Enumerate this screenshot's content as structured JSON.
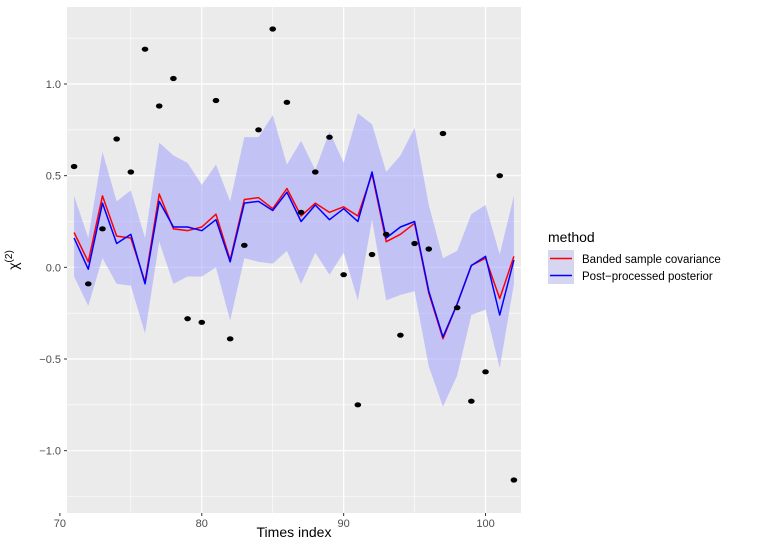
{
  "chart_data": {
    "type": "line",
    "title": "",
    "xlabel": "Times index",
    "ylabel": "χ",
    "ylabel_superscript": "(2)",
    "xlim": [
      70.5,
      102.5
    ],
    "ylim": [
      -1.34,
      1.42
    ],
    "x_ticks": [
      70,
      80,
      90,
      100
    ],
    "x_tick_labels": [
      "70",
      "80",
      "90",
      "100"
    ],
    "y_ticks": [
      -1.0,
      -0.5,
      0.0,
      0.5,
      1.0
    ],
    "y_tick_labels": [
      "−1.0",
      "−0.5",
      "0.0",
      "0.5",
      "1.0"
    ],
    "grid": true,
    "panel_background": "#ebebeb",
    "legend": {
      "title": "method",
      "placement": "right",
      "entries": [
        {
          "label": "Banded sample covariance",
          "color": "#ff0000"
        },
        {
          "label": "Post−processed posterior",
          "color": "#0000ff"
        }
      ]
    },
    "x": [
      71,
      72,
      73,
      74,
      75,
      76,
      77,
      78,
      79,
      80,
      81,
      82,
      83,
      84,
      85,
      86,
      87,
      88,
      89,
      90,
      91,
      92,
      93,
      94,
      95,
      96,
      97,
      98,
      99,
      100,
      101,
      102
    ],
    "series": [
      {
        "name": "Banded sample covariance",
        "color": "#ff0000",
        "values": [
          0.19,
          0.03,
          0.39,
          0.17,
          0.16,
          -0.08,
          0.4,
          0.21,
          0.2,
          0.22,
          0.29,
          0.04,
          0.37,
          0.38,
          0.32,
          0.43,
          0.28,
          0.35,
          0.3,
          0.33,
          0.28,
          0.51,
          0.14,
          0.18,
          0.24,
          -0.14,
          -0.39,
          -0.2,
          0.01,
          0.05,
          -0.17,
          0.06
        ]
      },
      {
        "name": "Post−processed posterior",
        "color": "#0000ff",
        "values": [
          0.16,
          -0.01,
          0.35,
          0.13,
          0.18,
          -0.09,
          0.36,
          0.22,
          0.22,
          0.2,
          0.26,
          0.03,
          0.35,
          0.36,
          0.31,
          0.41,
          0.25,
          0.34,
          0.26,
          0.32,
          0.25,
          0.52,
          0.16,
          0.22,
          0.25,
          -0.13,
          -0.38,
          -0.2,
          0.01,
          0.06,
          -0.26,
          0.04
        ]
      }
    ],
    "band": {
      "color": "#9999ff",
      "opacity": 0.5,
      "upper": [
        0.39,
        0.16,
        0.63,
        0.36,
        0.42,
        0.16,
        0.68,
        0.61,
        0.57,
        0.45,
        0.56,
        0.36,
        0.71,
        0.71,
        0.83,
        0.56,
        0.69,
        0.53,
        0.74,
        0.57,
        0.84,
        0.78,
        0.52,
        0.61,
        0.76,
        0.34,
        0.05,
        0.09,
        0.29,
        0.34,
        0.07,
        0.39
      ],
      "lower": [
        -0.05,
        -0.21,
        0.05,
        -0.09,
        -0.1,
        -0.36,
        0.14,
        -0.09,
        -0.05,
        -0.05,
        0.0,
        -0.29,
        0.05,
        0.03,
        0.02,
        0.09,
        -0.09,
        0.08,
        -0.04,
        0.08,
        -0.18,
        0.26,
        -0.18,
        -0.15,
        -0.13,
        -0.54,
        -0.76,
        -0.59,
        -0.26,
        -0.23,
        -0.55,
        -0.09
      ]
    },
    "points": {
      "x": [
        71,
        72,
        73,
        74,
        75,
        76,
        77,
        78,
        79,
        80,
        81,
        82,
        83,
        84,
        85,
        86,
        87,
        88,
        89,
        90,
        91,
        92,
        93,
        94,
        95,
        96,
        97,
        98,
        99,
        100,
        101,
        102
      ],
      "y": [
        0.55,
        -0.09,
        0.21,
        0.7,
        0.52,
        1.19,
        0.88,
        1.03,
        -0.28,
        -0.3,
        0.91,
        -0.39,
        0.12,
        0.75,
        1.3,
        0.9,
        0.3,
        0.52,
        0.71,
        -0.04,
        -0.75,
        0.07,
        0.18,
        -0.37,
        0.13,
        0.1,
        0.73,
        -0.22,
        -0.73,
        -0.57,
        0.5,
        -1.16
      ]
    }
  }
}
